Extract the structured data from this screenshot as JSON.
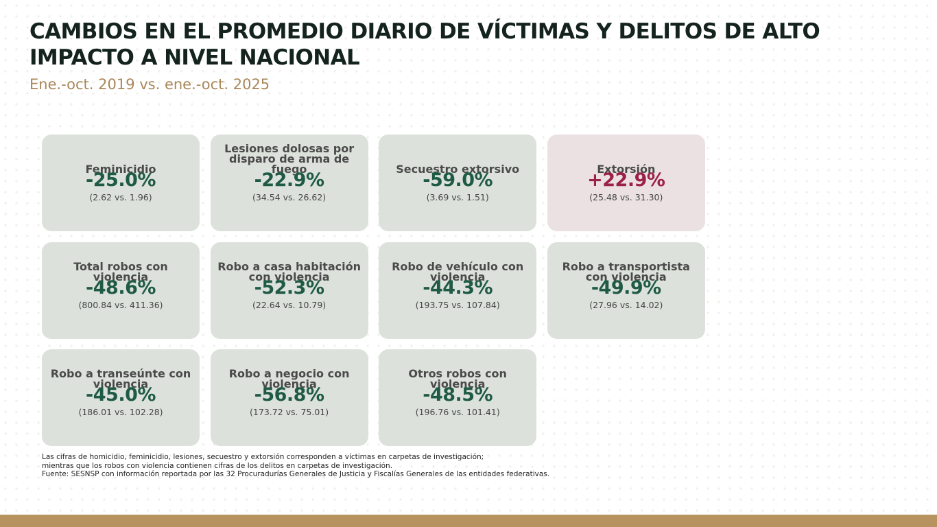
{
  "header": {
    "title": "CAMBIOS EN EL PROMEDIO DIARIO DE VÍCTIMAS Y DELITOS DE ALTO IMPACTO A NIVEL NACIONAL",
    "subtitle": "Ene.-oct. 2019 vs. ene.-oct. 2025"
  },
  "colors": {
    "decrease": "#1f5a45",
    "increase": "#9c2148",
    "card_bg": "#dce2db",
    "card_bg_increase": "#ebe1e3",
    "accent_bar": "#b6935f"
  },
  "cards": [
    {
      "label": "Feminicidio",
      "value": "-25.0%",
      "compare": "(2.62 vs. 1.96)",
      "trend": "down"
    },
    {
      "label": "Lesiones dolosas por disparo de arma de fuego",
      "value": "-22.9%",
      "compare": "(34.54 vs. 26.62)",
      "trend": "down"
    },
    {
      "label": "Secuestro extorsivo",
      "value": "-59.0%",
      "compare": "(3.69 vs. 1.51)",
      "trend": "down"
    },
    {
      "label": "Extorsión",
      "value": "+22.9%",
      "compare": "(25.48 vs. 31.30)",
      "trend": "up"
    },
    {
      "label": "Total robos con violencia",
      "value": "-48.6%",
      "compare": "(800.84 vs. 411.36)",
      "trend": "down"
    },
    {
      "label": "Robo a casa habitación con violencia",
      "value": "-52.3%",
      "compare": "(22.64 vs. 10.79)",
      "trend": "down"
    },
    {
      "label": "Robo de vehículo con violencia",
      "value": "-44.3%",
      "compare": "(193.75 vs. 107.84)",
      "trend": "down"
    },
    {
      "label": "Robo a transportista con violencia",
      "value": "-49.9%",
      "compare": "(27.96 vs. 14.02)",
      "trend": "down"
    },
    {
      "label": "Robo a transeúnte con violencia",
      "value": "-45.0%",
      "compare": "(186.01 vs. 102.28)",
      "trend": "down"
    },
    {
      "label": "Robo a negocio con violencia",
      "value": "-56.8%",
      "compare": "(173.72 vs. 75.01)",
      "trend": "down"
    },
    {
      "label": "Otros robos con violencia",
      "value": "-48.5%",
      "compare": "(196.76 vs. 101.41)",
      "trend": "down"
    }
  ],
  "notes": {
    "line1": "Las cifras de homicidio, feminicidio, lesiones, secuestro y extorsión corresponden a víctimas en carpetas de investigación;",
    "line2": "mientras que los robos con violencia contienen cifras de los delitos en carpetas de investigación.",
    "source": "Fuente: SESNSP con información reportada por las 32 Procuradurías Generales de Justicia y Fiscalías Generales de las entidades federativas."
  }
}
